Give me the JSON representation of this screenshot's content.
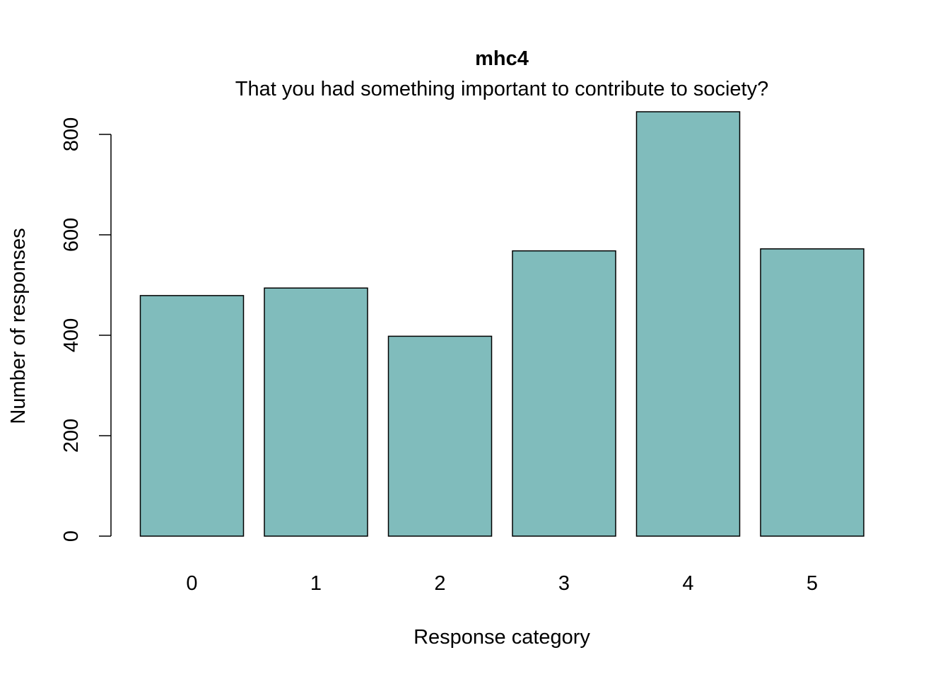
{
  "chart_data": {
    "type": "bar",
    "title": "mhc4",
    "subtitle": "That you had something important to contribute to society?",
    "xlabel": "Response category",
    "ylabel": "Number of responses",
    "categories": [
      "0",
      "1",
      "2",
      "3",
      "4",
      "5"
    ],
    "values": [
      479,
      494,
      398,
      568,
      845,
      572
    ],
    "ylim": [
      0,
      845
    ],
    "yticks": [
      0,
      200,
      400,
      600,
      800
    ],
    "ytick_labels": [
      "0",
      "200",
      "400",
      "600",
      "800"
    ],
    "bar_color": "#80bcbc",
    "bar_border_color": "#000000",
    "grid": false,
    "legend": "none"
  }
}
